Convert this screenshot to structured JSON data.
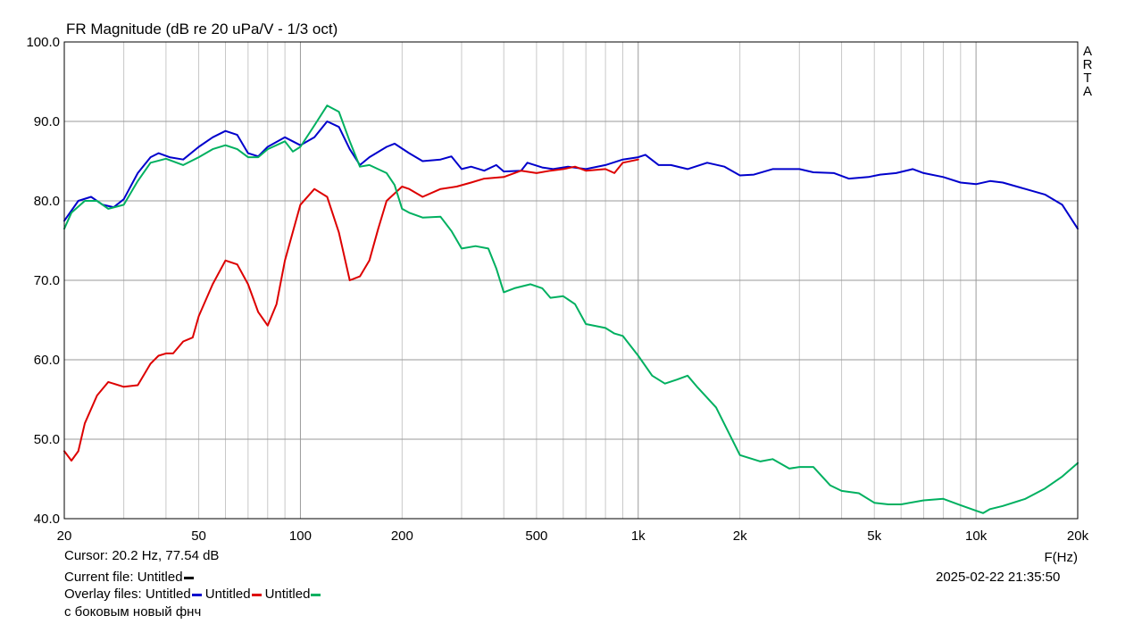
{
  "chart_data": {
    "type": "line",
    "title": "FR Magnitude (dB re 20 uPa/V - 1/3 oct)",
    "xlabel": "F(Hz)",
    "ylabel": "",
    "x_scale": "log",
    "xlim": [
      20,
      20000
    ],
    "ylim": [
      40,
      100
    ],
    "grid": true,
    "x_tick_labels": [
      {
        "value": 20,
        "label": "20"
      },
      {
        "value": 50,
        "label": "50"
      },
      {
        "value": 100,
        "label": "100"
      },
      {
        "value": 200,
        "label": "200"
      },
      {
        "value": 500,
        "label": "500"
      },
      {
        "value": 1000,
        "label": "1k"
      },
      {
        "value": 2000,
        "label": "2k"
      },
      {
        "value": 5000,
        "label": "5k"
      },
      {
        "value": 10000,
        "label": "10k"
      },
      {
        "value": 20000,
        "label": "20k"
      }
    ],
    "y_ticks": [
      {
        "value": 40,
        "label": "40.0"
      },
      {
        "value": 50,
        "label": "50.0"
      },
      {
        "value": 60,
        "label": "60.0"
      },
      {
        "value": 70,
        "label": "70.0"
      },
      {
        "value": 80,
        "label": "80.0"
      },
      {
        "value": 90,
        "label": "90.0"
      },
      {
        "value": 100,
        "label": "100.0"
      }
    ],
    "side_label": [
      "A",
      "R",
      "T",
      "A"
    ],
    "series": [
      {
        "color": "#0000cc",
        "points": [
          [
            20,
            77.5
          ],
          [
            22,
            80.0
          ],
          [
            24,
            80.5
          ],
          [
            26,
            79.5
          ],
          [
            28,
            79.2
          ],
          [
            30,
            80.2
          ],
          [
            33,
            83.5
          ],
          [
            36,
            85.5
          ],
          [
            38,
            86.0
          ],
          [
            41,
            85.5
          ],
          [
            45,
            85.2
          ],
          [
            50,
            86.8
          ],
          [
            55,
            88.0
          ],
          [
            60,
            88.8
          ],
          [
            65,
            88.3
          ],
          [
            70,
            86.0
          ],
          [
            75,
            85.6
          ],
          [
            80,
            86.8
          ],
          [
            90,
            88.0
          ],
          [
            100,
            87.0
          ],
          [
            110,
            88.0
          ],
          [
            120,
            90.0
          ],
          [
            130,
            89.3
          ],
          [
            140,
            86.5
          ],
          [
            150,
            84.5
          ],
          [
            160,
            85.5
          ],
          [
            180,
            86.8
          ],
          [
            190,
            87.2
          ],
          [
            210,
            86.0
          ],
          [
            230,
            85.0
          ],
          [
            260,
            85.2
          ],
          [
            280,
            85.6
          ],
          [
            300,
            84.0
          ],
          [
            320,
            84.3
          ],
          [
            350,
            83.8
          ],
          [
            380,
            84.5
          ],
          [
            400,
            83.7
          ],
          [
            450,
            83.8
          ],
          [
            470,
            84.8
          ],
          [
            520,
            84.2
          ],
          [
            560,
            84.0
          ],
          [
            620,
            84.3
          ],
          [
            700,
            84.0
          ],
          [
            800,
            84.5
          ],
          [
            900,
            85.2
          ],
          [
            1000,
            85.5
          ],
          [
            1050,
            85.8
          ],
          [
            1150,
            84.5
          ],
          [
            1250,
            84.5
          ],
          [
            1400,
            84.0
          ],
          [
            1600,
            84.8
          ],
          [
            1800,
            84.3
          ],
          [
            2000,
            83.2
          ],
          [
            2200,
            83.3
          ],
          [
            2500,
            84.0
          ],
          [
            3000,
            84.0
          ],
          [
            3300,
            83.6
          ],
          [
            3800,
            83.5
          ],
          [
            4200,
            82.8
          ],
          [
            4800,
            83.0
          ],
          [
            5200,
            83.3
          ],
          [
            5800,
            83.5
          ],
          [
            6500,
            84.0
          ],
          [
            7000,
            83.5
          ],
          [
            8000,
            83.0
          ],
          [
            9000,
            82.3
          ],
          [
            10000,
            82.1
          ],
          [
            11000,
            82.5
          ],
          [
            12000,
            82.3
          ],
          [
            14000,
            81.5
          ],
          [
            16000,
            80.8
          ],
          [
            18000,
            79.5
          ],
          [
            20000,
            76.5
          ]
        ]
      },
      {
        "color": "#dd0000",
        "points": [
          [
            20,
            48.5
          ],
          [
            21,
            47.3
          ],
          [
            22,
            48.5
          ],
          [
            23,
            52.0
          ],
          [
            25,
            55.5
          ],
          [
            27,
            57.2
          ],
          [
            30,
            56.6
          ],
          [
            33,
            56.8
          ],
          [
            36,
            59.5
          ],
          [
            38,
            60.5
          ],
          [
            40,
            60.8
          ],
          [
            42,
            60.8
          ],
          [
            45,
            62.3
          ],
          [
            48,
            62.8
          ],
          [
            50,
            65.5
          ],
          [
            55,
            69.5
          ],
          [
            60,
            72.5
          ],
          [
            65,
            72.0
          ],
          [
            70,
            69.5
          ],
          [
            75,
            66.0
          ],
          [
            80,
            64.3
          ],
          [
            85,
            67.0
          ],
          [
            90,
            72.5
          ],
          [
            100,
            79.5
          ],
          [
            110,
            81.5
          ],
          [
            120,
            80.5
          ],
          [
            130,
            76.0
          ],
          [
            140,
            70.0
          ],
          [
            150,
            70.5
          ],
          [
            160,
            72.5
          ],
          [
            170,
            76.5
          ],
          [
            180,
            80.0
          ],
          [
            200,
            81.8
          ],
          [
            210,
            81.5
          ],
          [
            230,
            80.5
          ],
          [
            260,
            81.5
          ],
          [
            290,
            81.8
          ],
          [
            320,
            82.3
          ],
          [
            350,
            82.8
          ],
          [
            400,
            83.0
          ],
          [
            450,
            83.8
          ],
          [
            500,
            83.5
          ],
          [
            550,
            83.8
          ],
          [
            600,
            84.0
          ],
          [
            650,
            84.3
          ],
          [
            700,
            83.8
          ],
          [
            800,
            84.0
          ],
          [
            850,
            83.5
          ],
          [
            900,
            84.8
          ],
          [
            1000,
            85.2
          ]
        ]
      },
      {
        "color": "#00b060",
        "points": [
          [
            20,
            76.5
          ],
          [
            21,
            78.5
          ],
          [
            23,
            80.0
          ],
          [
            25,
            80.0
          ],
          [
            27,
            79.0
          ],
          [
            30,
            79.5
          ],
          [
            33,
            82.5
          ],
          [
            36,
            84.8
          ],
          [
            40,
            85.3
          ],
          [
            45,
            84.5
          ],
          [
            50,
            85.5
          ],
          [
            55,
            86.5
          ],
          [
            60,
            87.0
          ],
          [
            65,
            86.5
          ],
          [
            70,
            85.5
          ],
          [
            75,
            85.5
          ],
          [
            80,
            86.5
          ],
          [
            90,
            87.5
          ],
          [
            95,
            86.2
          ],
          [
            100,
            86.8
          ],
          [
            110,
            89.5
          ],
          [
            120,
            92.0
          ],
          [
            130,
            91.2
          ],
          [
            140,
            87.5
          ],
          [
            150,
            84.3
          ],
          [
            160,
            84.5
          ],
          [
            180,
            83.5
          ],
          [
            190,
            82.0
          ],
          [
            200,
            79.0
          ],
          [
            210,
            78.5
          ],
          [
            230,
            77.9
          ],
          [
            260,
            78.0
          ],
          [
            280,
            76.2
          ],
          [
            300,
            74.0
          ],
          [
            330,
            74.3
          ],
          [
            360,
            74.0
          ],
          [
            380,
            71.5
          ],
          [
            400,
            68.5
          ],
          [
            430,
            69.0
          ],
          [
            480,
            69.5
          ],
          [
            520,
            69.0
          ],
          [
            550,
            67.8
          ],
          [
            600,
            68.0
          ],
          [
            650,
            67.0
          ],
          [
            700,
            64.5
          ],
          [
            800,
            64.0
          ],
          [
            850,
            63.3
          ],
          [
            900,
            63.0
          ],
          [
            1000,
            60.5
          ],
          [
            1100,
            58.0
          ],
          [
            1200,
            57.0
          ],
          [
            1300,
            57.5
          ],
          [
            1400,
            58.0
          ],
          [
            1500,
            56.5
          ],
          [
            1700,
            54.0
          ],
          [
            2000,
            48.0
          ],
          [
            2300,
            47.2
          ],
          [
            2500,
            47.5
          ],
          [
            2800,
            46.3
          ],
          [
            3000,
            46.5
          ],
          [
            3300,
            46.5
          ],
          [
            3700,
            44.2
          ],
          [
            4000,
            43.5
          ],
          [
            4500,
            43.2
          ],
          [
            5000,
            42.0
          ],
          [
            5500,
            41.8
          ],
          [
            6000,
            41.8
          ],
          [
            7000,
            42.3
          ],
          [
            8000,
            42.5
          ],
          [
            9000,
            41.7
          ],
          [
            10000,
            41.0
          ],
          [
            10500,
            40.7
          ],
          [
            11000,
            41.2
          ],
          [
            12000,
            41.6
          ],
          [
            14000,
            42.5
          ],
          [
            16000,
            43.8
          ],
          [
            18000,
            45.3
          ],
          [
            20000,
            47.0
          ]
        ]
      }
    ]
  },
  "info": {
    "cursor": "Cursor: 20.2 Hz, 77.54 dB",
    "current_file_label": "Current file: Untitled",
    "current_file_color": "#000000",
    "overlay_label": "Overlay files:",
    "overlays": [
      {
        "name": "Untitled",
        "color": "#0000cc"
      },
      {
        "name": "Untitled",
        "color": "#dd0000"
      },
      {
        "name": "Untitled",
        "color": "#00b060"
      }
    ],
    "note": "с боковым новый фнч",
    "timestamp": "2025-02-22   21:35:50"
  }
}
